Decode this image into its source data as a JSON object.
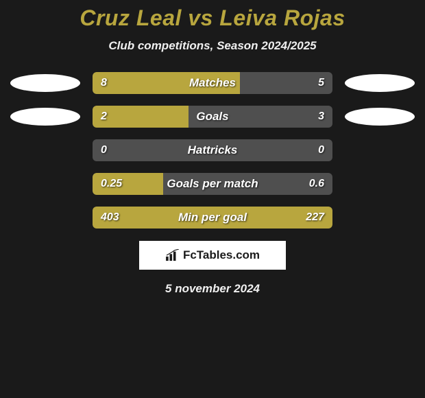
{
  "title": "Cruz Leal vs Leiva Rojas",
  "subtitle": "Club competitions, Season 2024/2025",
  "date": "5 november 2024",
  "logo_text": "FcTables.com",
  "colors": {
    "background": "#1a1a1a",
    "accent": "#b8a63e",
    "bar_bg": "#4f4f4f",
    "text_light": "#f0f0f0",
    "badge": "#ffffff"
  },
  "stats": [
    {
      "label": "Matches",
      "left_value": "8",
      "right_value": "5",
      "fill_percent": 61.5,
      "show_badges": true
    },
    {
      "label": "Goals",
      "left_value": "2",
      "right_value": "3",
      "fill_percent": 40,
      "show_badges": true
    },
    {
      "label": "Hattricks",
      "left_value": "0",
      "right_value": "0",
      "fill_percent": 0,
      "show_badges": false
    },
    {
      "label": "Goals per match",
      "left_value": "0.25",
      "right_value": "0.6",
      "fill_percent": 29.4,
      "show_badges": false
    },
    {
      "label": "Min per goal",
      "left_value": "403",
      "right_value": "227",
      "fill_percent": 100,
      "show_badges": false
    }
  ]
}
